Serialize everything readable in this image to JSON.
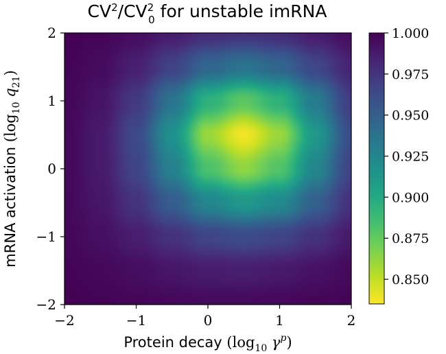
{
  "chart_data": {
    "type": "heatmap",
    "title": {
      "parts": [
        {
          "text": "CV",
          "sup": "2",
          "sub": null
        },
        {
          "text": "/CV",
          "sup": "2",
          "sub": "0"
        },
        {
          "text": " for unstable imRNA",
          "sup": null,
          "sub": null
        }
      ]
    },
    "xlabel": {
      "text": "Protein decay",
      "math": "(log10 γ^p)"
    },
    "ylabel": {
      "text": "mRNA activation",
      "math": "(log10 q21)"
    },
    "xlim": [
      -2,
      2
    ],
    "ylim": [
      -2,
      2
    ],
    "xticks": [
      {
        "value": -2,
        "label": "−2"
      },
      {
        "value": -1,
        "label": "−1"
      },
      {
        "value": 0,
        "label": "0"
      },
      {
        "value": 1,
        "label": "1"
      },
      {
        "value": 2,
        "label": "2"
      }
    ],
    "yticks": [
      {
        "value": -2,
        "label": "−2"
      },
      {
        "value": -1,
        "label": "−1"
      },
      {
        "value": 0,
        "label": "0"
      },
      {
        "value": 1,
        "label": "1"
      },
      {
        "value": 2,
        "label": "2"
      }
    ],
    "colormap": "viridis_r",
    "color_range": [
      0.835,
      1.0
    ],
    "colorbar_ticks": [
      {
        "value": 1.0,
        "label": "1.000"
      },
      {
        "value": 0.975,
        "label": "0.975"
      },
      {
        "value": 0.95,
        "label": "0.950"
      },
      {
        "value": 0.925,
        "label": "0.925"
      },
      {
        "value": 0.9,
        "label": "0.900"
      },
      {
        "value": 0.875,
        "label": "0.875"
      },
      {
        "value": 0.85,
        "label": "0.850"
      }
    ],
    "field": {
      "x": [
        -2,
        -1.5,
        -1,
        -0.5,
        0,
        0.5,
        1,
        1.5,
        2
      ],
      "y": [
        -2,
        -1.5,
        -1,
        -0.5,
        0,
        0.5,
        1,
        1.5,
        2
      ],
      "z": [
        [
          1.0,
          0.999,
          0.998,
          0.997,
          0.996,
          0.996,
          0.997,
          0.998,
          0.999
        ],
        [
          0.999,
          0.997,
          0.994,
          0.99,
          0.987,
          0.986,
          0.988,
          0.992,
          0.996
        ],
        [
          0.998,
          0.993,
          0.986,
          0.976,
          0.966,
          0.962,
          0.966,
          0.976,
          0.988
        ],
        [
          0.997,
          0.99,
          0.975,
          0.951,
          0.925,
          0.912,
          0.922,
          0.949,
          0.976
        ],
        [
          0.997,
          0.988,
          0.966,
          0.928,
          0.882,
          0.862,
          0.88,
          0.925,
          0.966
        ],
        [
          0.997,
          0.988,
          0.963,
          0.917,
          0.86,
          0.838,
          0.86,
          0.912,
          0.961
        ],
        [
          0.998,
          0.991,
          0.972,
          0.937,
          0.895,
          0.877,
          0.894,
          0.932,
          0.97
        ],
        [
          0.999,
          0.995,
          0.985,
          0.967,
          0.946,
          0.937,
          0.946,
          0.965,
          0.983
        ],
        [
          1.0,
          0.998,
          0.994,
          0.987,
          0.979,
          0.976,
          0.979,
          0.987,
          0.994
        ]
      ]
    }
  }
}
